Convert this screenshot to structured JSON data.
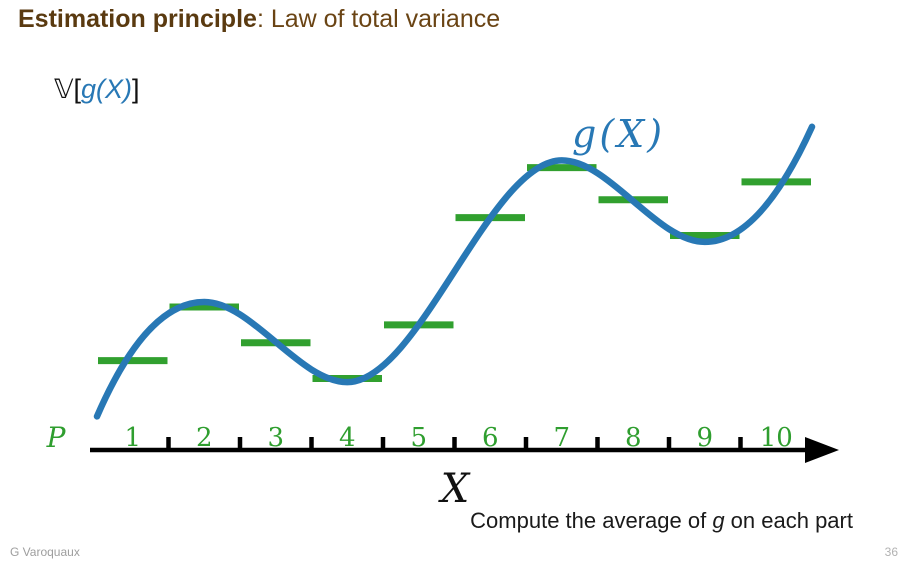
{
  "slide": {
    "title": {
      "bold": "Estimation principle",
      "rest": ": Law of total variance"
    },
    "formula": {
      "operator": "𝕍",
      "open": "[",
      "inner": "g(X)",
      "close": "]"
    },
    "caption": {
      "pre": "Compute the average of ",
      "italic": "g",
      "post": " on each part"
    },
    "footer": {
      "author": "G Varoquaux",
      "page": "36"
    }
  },
  "chart_data": {
    "type": "line",
    "curve_label": "g(X)",
    "xlabel": "X",
    "partition_label": "P",
    "x_ticks": [
      "1",
      "2",
      "3",
      "4",
      "5",
      "6",
      "7",
      "8",
      "9",
      "10"
    ],
    "x_range": [
      0,
      10
    ],
    "segment_averages": [
      1.25,
      2.0,
      1.5,
      1.0,
      1.75,
      3.25,
      3.95,
      3.5,
      3.0,
      3.75
    ],
    "curve_knots": [
      {
        "x": 0.0,
        "y": 0.47,
        "m": 2.3
      },
      {
        "x": 1.5,
        "y": 2.07,
        "m": 0
      },
      {
        "x": 3.5,
        "y": 0.95,
        "m": 0
      },
      {
        "x": 6.5,
        "y": 4.05,
        "m": 0
      },
      {
        "x": 8.5,
        "y": 2.91,
        "m": 0
      },
      {
        "x": 10.0,
        "y": 4.52,
        "m": 2.2
      }
    ],
    "grid": false,
    "legend": "none",
    "colors": {
      "curve": "#2878b5",
      "average": "#31a02f",
      "tick_label": "#2f9e2f",
      "axis": "#000000",
      "title_brown": "#5a3a10",
      "footer_gray": "#9e9e9e"
    }
  }
}
